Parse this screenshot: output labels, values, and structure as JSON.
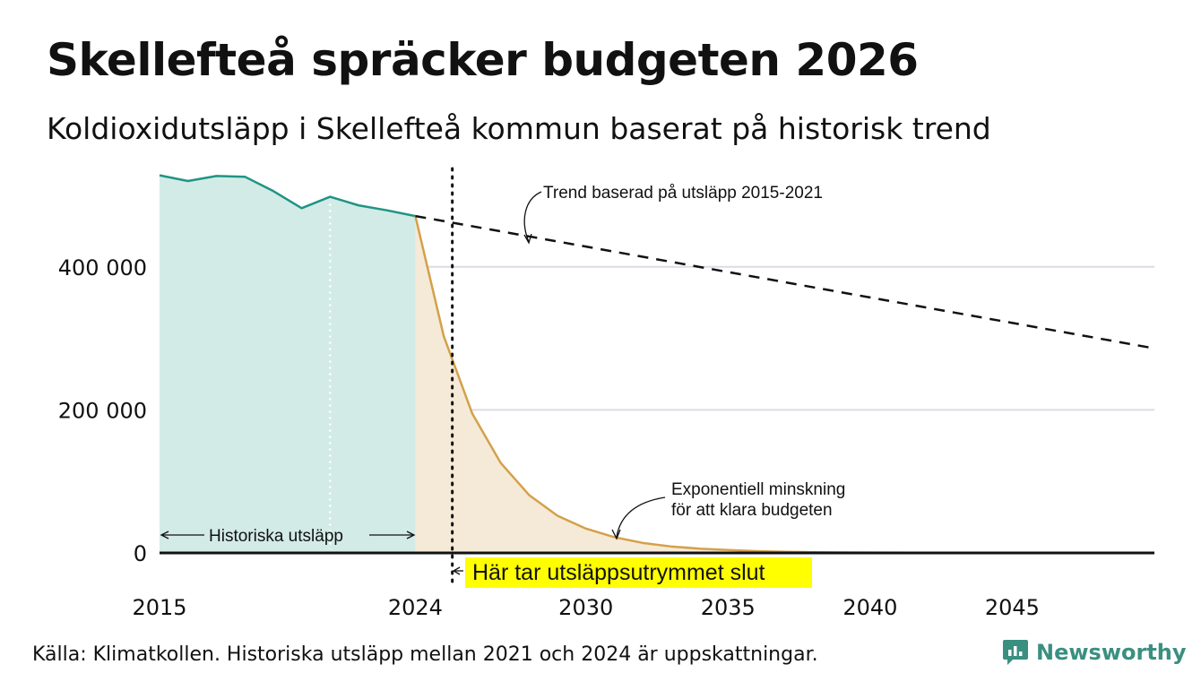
{
  "title": "Skellefteå spräcker budgeten 2026",
  "subtitle": "Koldioxidutsläpp i Skellefteå kommun baserat på historisk trend",
  "source": "Källa: Klimatkollen. Historiska utsläpp mellan 2021 och 2024 är uppskattningar.",
  "brand": {
    "name": "Newsworthy",
    "icon": "newsworthy-chart-bubble-icon",
    "color": "#3a8f80"
  },
  "colors": {
    "historical_line": "#1f9485",
    "historical_fill": "#d3ebe6",
    "budget_line": "#d4a04a",
    "budget_fill": "#f5ead7",
    "grid": "#dcdce6",
    "highlight": "#ffff00"
  },
  "chart_data": {
    "type": "area",
    "xlim": [
      2015,
      2050
    ],
    "ylim": [
      0,
      530000
    ],
    "x_ticks": [
      {
        "value": 2015,
        "label": "2015"
      },
      {
        "value": 2024,
        "label": "2024"
      },
      {
        "value": 2030,
        "label": "2030"
      },
      {
        "value": 2035,
        "label": "2035"
      },
      {
        "value": 2040,
        "label": "2040"
      },
      {
        "value": 2045,
        "label": "2045"
      }
    ],
    "y_ticks": [
      {
        "value": 0,
        "label": "0"
      },
      {
        "value": 200000,
        "label": "200 000"
      },
      {
        "value": 400000,
        "label": "400 000"
      }
    ],
    "series": [
      {
        "name": "Historiska utsläpp",
        "style": "area",
        "x": [
          2015,
          2016,
          2017,
          2018,
          2019,
          2020,
          2021,
          2022,
          2023,
          2024
        ],
        "values": [
          528000,
          520000,
          527000,
          526000,
          506000,
          482000,
          498000,
          486000,
          479000,
          471000
        ]
      },
      {
        "name": "Exponentiell minskning för att klara budgeten",
        "style": "area",
        "x": [
          2024,
          2025,
          2026,
          2027,
          2028,
          2029,
          2030,
          2031,
          2032,
          2033,
          2034,
          2035,
          2036,
          2037,
          2038,
          2039,
          2040,
          2042,
          2045,
          2050
        ],
        "values": [
          471000,
          303000,
          195000,
          126000,
          81000,
          52000,
          34000,
          22000,
          14000,
          9000,
          6000,
          4000,
          2500,
          1600,
          1000,
          700,
          500,
          300,
          100,
          0
        ]
      },
      {
        "name": "Trend baserad på utsläpp 2015-2021",
        "style": "dashed",
        "x": [
          2024,
          2050
        ],
        "values": [
          471000,
          286000
        ]
      }
    ],
    "markers": [
      {
        "x": 2021,
        "style": "white-dotted"
      },
      {
        "x": 2025.3,
        "style": "black-dotted",
        "label": "Här tar utsläppsutrymmet slut"
      }
    ],
    "annotations": {
      "historical": "Historiska utsläpp",
      "trend": "Trend baserad på utsläpp 2015-2021",
      "exp_line1": "Exponentiell minskning",
      "exp_line2": "för att klara budgeten",
      "budget_end": "Här tar utsläppsutrymmet slut"
    }
  }
}
